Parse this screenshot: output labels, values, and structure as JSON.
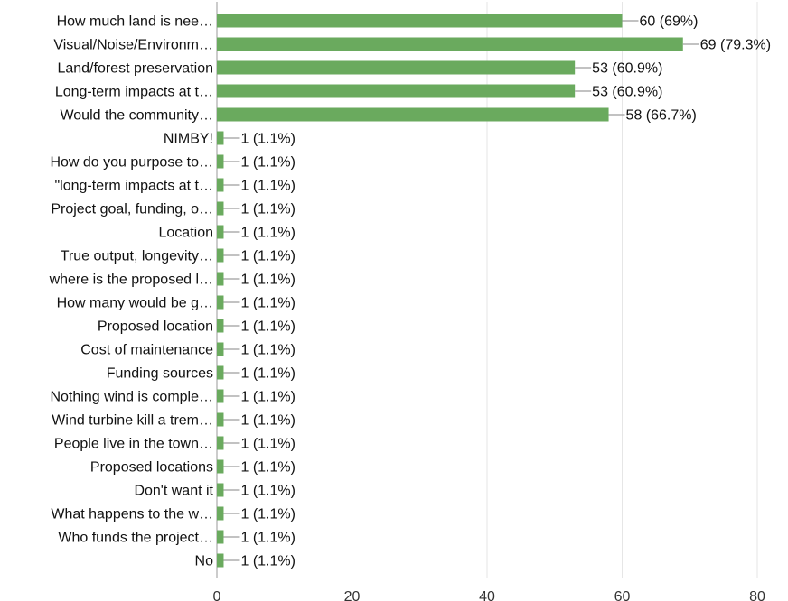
{
  "chart_data": {
    "type": "bar",
    "orientation": "horizontal",
    "categories": [
      "How much land is nee…",
      "Visual/Noise/Environm…",
      "Land/forest preservation",
      "Long-term impacts at t…",
      "Would the community…",
      "NIMBY!",
      "How do you purpose to…",
      "\"long-term impacts at t…",
      "Project goal, funding, o…",
      "Location",
      "True output, longevity…",
      "where is the proposed l…",
      "How many would be g…",
      "Proposed location",
      "Cost of maintenance",
      "Funding sources",
      "Nothing wind is comple…",
      "Wind turbine kill a trem…",
      "People live in the town…",
      "Proposed locations",
      "Don't want it",
      "What happens to the w…",
      "Who funds the project…",
      "No"
    ],
    "values": [
      60,
      69,
      53,
      53,
      58,
      1,
      1,
      1,
      1,
      1,
      1,
      1,
      1,
      1,
      1,
      1,
      1,
      1,
      1,
      1,
      1,
      1,
      1,
      1
    ],
    "data_labels": [
      "60 (69%)",
      "69 (79.3%)",
      "53 (60.9%)",
      "53 (60.9%)",
      "58 (66.7%)",
      "1 (1.1%)",
      "1 (1.1%)",
      "1 (1.1%)",
      "1 (1.1%)",
      "1 (1.1%)",
      "1 (1.1%)",
      "1 (1.1%)",
      "1 (1.1%)",
      "1 (1.1%)",
      "1 (1.1%)",
      "1 (1.1%)",
      "1 (1.1%)",
      "1 (1.1%)",
      "1 (1.1%)",
      "1 (1.1%)",
      "1 (1.1%)",
      "1 (1.1%)",
      "1 (1.1%)",
      "1 (1.1%)"
    ],
    "xlim": [
      0,
      80
    ],
    "xticks": [
      "0",
      "20",
      "40",
      "60",
      "80"
    ],
    "grid": true,
    "legend": "none"
  },
  "colors": {
    "bar": "#6aaa5e",
    "grid": "#e6e6e6",
    "axis": "#999999",
    "leader": "#9e9e9e",
    "text": "#111111"
  }
}
